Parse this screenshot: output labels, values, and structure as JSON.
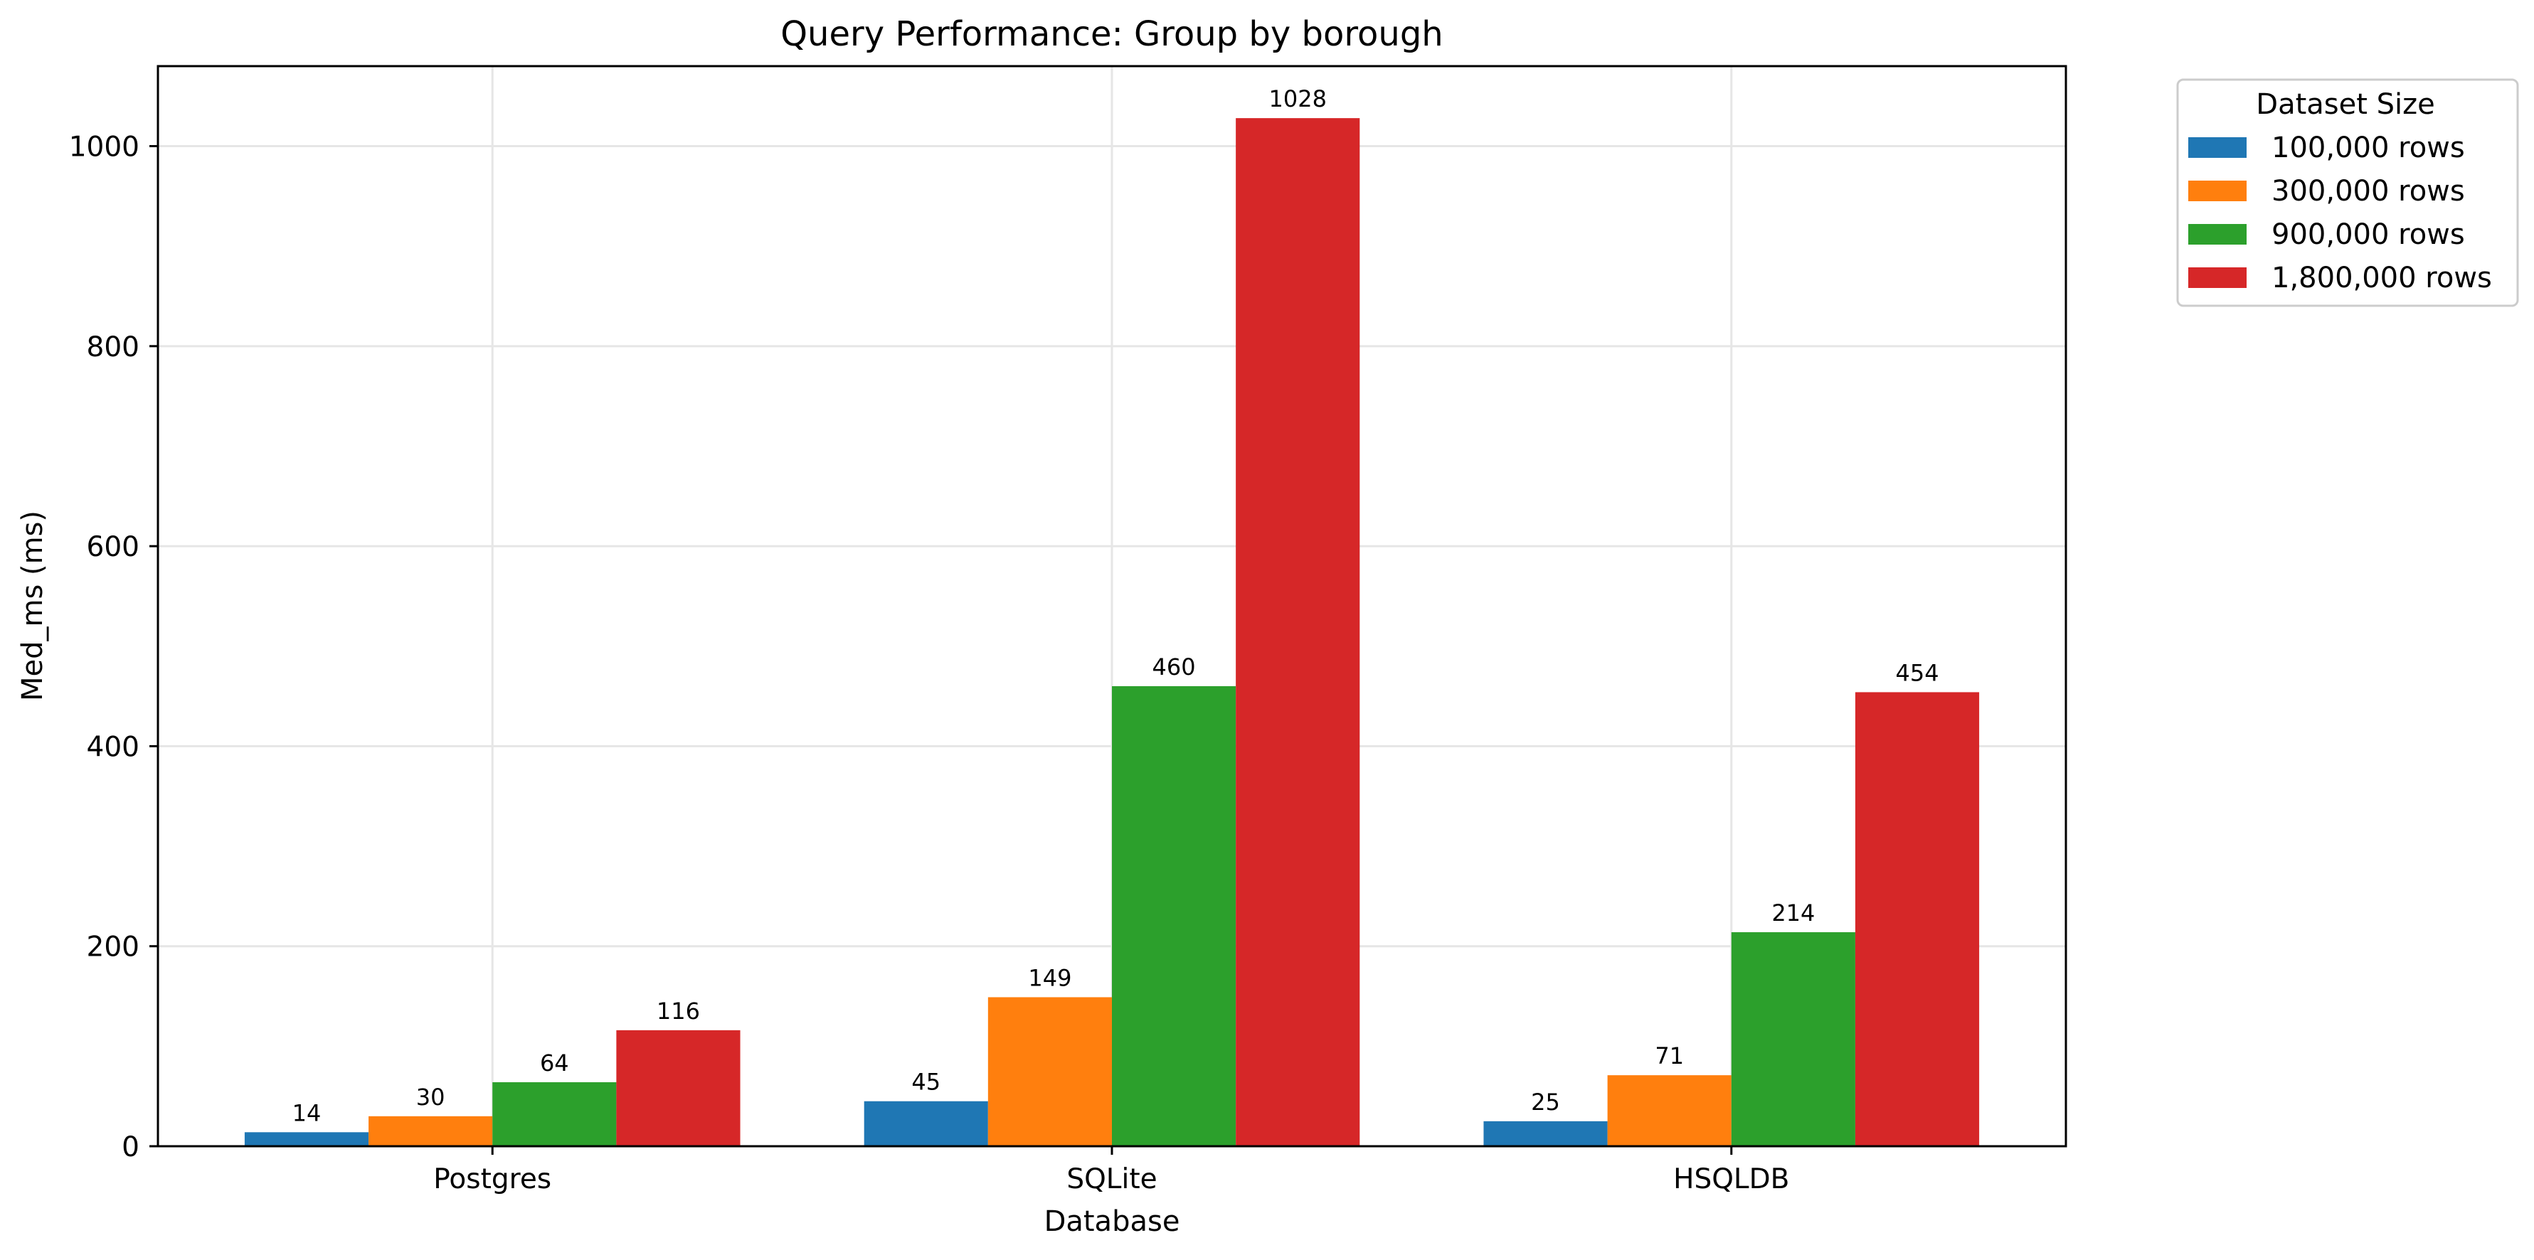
{
  "chart_data": {
    "type": "bar",
    "title": "Query Performance: Group by borough",
    "xlabel": "Database",
    "ylabel": "Med_ms (ms)",
    "categories": [
      "Postgres",
      "SQLite",
      "HSQLDB"
    ],
    "ylim": [
      0,
      1080
    ],
    "yticks": [
      0,
      200,
      400,
      600,
      800,
      1000
    ],
    "grid": true,
    "legend": {
      "title": "Dataset Size",
      "placement": "outside-top-right"
    },
    "series": [
      {
        "name": "100,000 rows",
        "color": "#1f77b4",
        "values": [
          14,
          45,
          25
        ]
      },
      {
        "name": "300,000 rows",
        "color": "#ff7f0e",
        "values": [
          30,
          149,
          71
        ]
      },
      {
        "name": "900,000 rows",
        "color": "#2ca02c",
        "values": [
          64,
          460,
          214
        ]
      },
      {
        "name": "1,800,000 rows",
        "color": "#d62728",
        "values": [
          116,
          1028,
          454
        ]
      }
    ]
  }
}
